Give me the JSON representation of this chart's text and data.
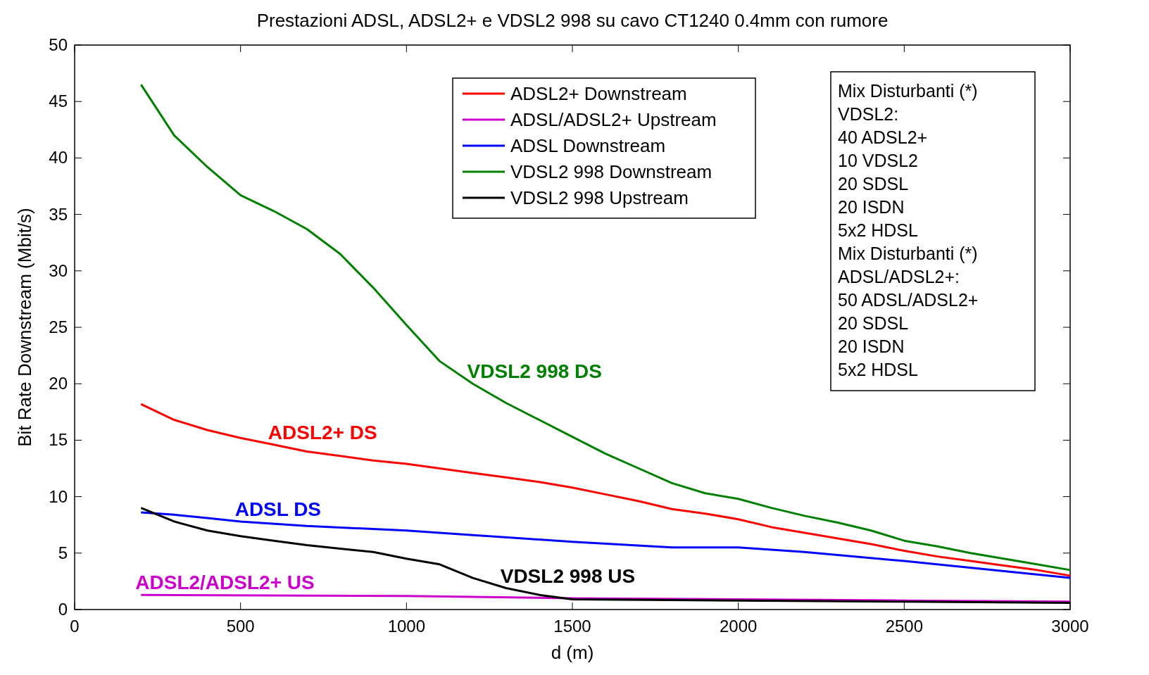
{
  "chart_data": {
    "type": "line",
    "title": "Prestazioni ADSL, ADSL2+ e VDSL2 998 su cavo CT1240 0.4mm con rumore",
    "xlabel": "d (m)",
    "ylabel": "Bit Rate Downstream (Mbit/s)",
    "xlim": [
      0,
      3000
    ],
    "xticks": [
      0,
      500,
      1000,
      1500,
      2000,
      2500,
      3000
    ],
    "ylim": [
      0,
      50
    ],
    "yticks": [
      0,
      5,
      10,
      15,
      20,
      25,
      30,
      35,
      40,
      45,
      50
    ],
    "grid": false,
    "legend": "top",
    "marker": "none",
    "line_style": "solid",
    "series": [
      {
        "name": "ADSL2+ Downstream",
        "color": "#ff0000",
        "x": [
          200,
          300,
          400,
          500,
          600,
          700,
          800,
          900,
          1000,
          1100,
          1200,
          1300,
          1400,
          1500,
          1600,
          1700,
          1800,
          1900,
          2000,
          2100,
          2200,
          2300,
          2400,
          2500,
          2600,
          2700,
          2800,
          2900,
          3000
        ],
        "values": [
          18.2,
          16.8,
          15.9,
          15.2,
          14.6,
          14,
          13.6,
          13.2,
          12.9,
          12.5,
          12.1,
          11.7,
          11.3,
          10.8,
          10.2,
          9.6,
          8.9,
          8.5,
          8,
          7.3,
          6.8,
          6.3,
          5.8,
          5.2,
          4.7,
          4.3,
          3.9,
          3.5,
          3
        ]
      },
      {
        "name": "ADSL/ADSL2+ Upstream",
        "color": "#cc00cc",
        "x": [
          200,
          1000,
          1500,
          2000,
          2500,
          3000
        ],
        "values": [
          1.3,
          1.2,
          1,
          0.9,
          0.8,
          0.7
        ]
      },
      {
        "name": "ADSL Downstream",
        "color": "#0000ff",
        "x": [
          200,
          300,
          400,
          500,
          700,
          1000,
          1200,
          1500,
          1800,
          2000,
          2200,
          2500,
          3000
        ],
        "values": [
          8.6,
          8.4,
          8.1,
          7.8,
          7.4,
          7,
          6.6,
          6,
          5.5,
          5.5,
          5.1,
          4.3,
          2.8
        ]
      },
      {
        "name": "VDSL2 998 Downstream",
        "color": "#008000",
        "x": [
          200,
          300,
          400,
          500,
          600,
          700,
          800,
          900,
          1000,
          1100,
          1200,
          1300,
          1400,
          1500,
          1600,
          1700,
          1800,
          1900,
          2000,
          2100,
          2200,
          2300,
          2400,
          2500,
          2600,
          2700,
          2800,
          2900,
          3000
        ],
        "values": [
          46.5,
          42,
          39.2,
          36.7,
          35.3,
          33.7,
          31.5,
          28.5,
          25.2,
          22,
          20,
          18.3,
          16.8,
          15.3,
          13.8,
          12.5,
          11.2,
          10.3,
          9.8,
          9,
          8.3,
          7.7,
          7,
          6.1,
          5.6,
          5,
          4.5,
          4,
          3.5
        ]
      },
      {
        "name": "VDSL2 998 Upstream",
        "color": "#000000",
        "x": [
          200,
          300,
          400,
          500,
          600,
          700,
          800,
          900,
          1000,
          1100,
          1200,
          1300,
          1400,
          1500,
          2000,
          2500,
          3000
        ],
        "values": [
          9,
          7.8,
          7,
          6.5,
          6.1,
          5.7,
          5.4,
          5.1,
          4.5,
          4,
          2.8,
          1.9,
          1.3,
          0.9,
          0.8,
          0.7,
          0.6
        ]
      }
    ],
    "annotations": [
      {
        "text": "VDSL2 998 DS",
        "x": 1200,
        "y": 20
      },
      {
        "text": "ADSL2+ DS",
        "x": 600,
        "y": 14.6
      },
      {
        "text": "ADSL DS",
        "x": 500,
        "y": 7.8
      },
      {
        "text": "ADSL2/ADSL2+ US",
        "x": 200,
        "y": 1.3
      },
      {
        "text": "VDSL2 998 US",
        "x": 1300,
        "y": 1.9
      },
      "Mix Disturbanti (*)",
      "VDSL2:",
      "40 ADSL2+",
      "10 VDSL2",
      "20 SDSL",
      "20 ISDN",
      "5x2 HDSL",
      "Mix Disturbanti (*)",
      "ADSL/ADSL2+:",
      "50 ADSL/ADSL2+",
      "20 SDSL",
      "20 ISDN",
      "5x2 HDSL"
    ]
  }
}
